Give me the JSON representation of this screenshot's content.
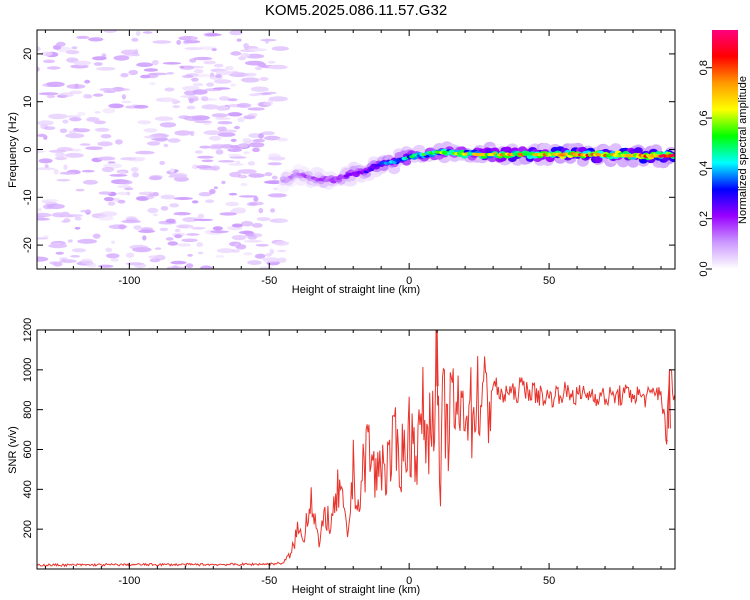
{
  "title": "KOM5.2025.086.11.57.G32",
  "chart_data": [
    {
      "type": "heatmap",
      "title": "KOM5.2025.086.11.57.G32",
      "xlabel": "Height of straight line (km)",
      "ylabel": "Frequency (Hz)",
      "xlim": [
        -133,
        95
      ],
      "ylim": [
        -25,
        25
      ],
      "x_ticks": [
        -100,
        -50,
        0,
        50
      ],
      "y_ticks": [
        20,
        10,
        0,
        -10,
        -20
      ],
      "y_tick_labels": [
        "20",
        "10",
        "0",
        "-10",
        "-20"
      ],
      "colorbar": {
        "label": "Normalized spectral amplitude",
        "range": [
          0,
          0.95
        ],
        "ticks": [
          0,
          0.2,
          0.4,
          0.6,
          0.8
        ],
        "tick_labels": [
          "0.0",
          "0.2",
          "0.4",
          "0.6",
          "0.8"
        ],
        "colormap": [
          "#ffffff",
          "#cc99ff",
          "#9900ff",
          "#0000ff",
          "#00ffff",
          "#00ff00",
          "#ffff00",
          "#ff9900",
          "#ff0000",
          "#ff0080"
        ]
      },
      "ridge": {
        "x": [
          -45,
          -40,
          -35,
          -30,
          -25,
          -20,
          -15,
          -10,
          -5,
          0,
          5,
          10,
          15,
          20,
          30,
          40,
          50,
          60,
          70,
          80,
          90,
          95
        ],
        "frequency": [
          -6.5,
          -5,
          -6,
          -6.5,
          -6,
          -5,
          -4.5,
          -3,
          -2.5,
          -1.5,
          -1,
          -0.5,
          -0.8,
          -1,
          -1,
          -1,
          -1,
          -1,
          -1.2,
          -1.2,
          -1.3,
          -1.3
        ],
        "amplitude": [
          0.1,
          0.12,
          0.15,
          0.18,
          0.2,
          0.22,
          0.25,
          0.3,
          0.35,
          0.4,
          0.45,
          0.5,
          0.5,
          0.55,
          0.6,
          0.65,
          0.65,
          0.7,
          0.7,
          0.7,
          0.75,
          0.75
        ]
      },
      "noise_region": {
        "x_range": [
          -133,
          -45
        ],
        "amplitude": 0.05
      }
    },
    {
      "type": "line",
      "xlabel": "Height of straight line (km)",
      "ylabel": "SNR (v/v)",
      "xlim": [
        -133,
        95
      ],
      "ylim": [
        0,
        1200
      ],
      "x_ticks": [
        -100,
        -50,
        0,
        50
      ],
      "y_ticks": [
        200,
        400,
        600,
        800,
        1000,
        1200
      ],
      "color": "#e8342c",
      "series": [
        {
          "x": [
            -133,
            -120,
            -100,
            -80,
            -60,
            -50,
            -45,
            -42,
            -40,
            -38,
            -35,
            -32,
            -30,
            -28,
            -25,
            -22,
            -20,
            -18,
            -15,
            -12,
            -10,
            -8,
            -5,
            -3,
            0,
            3,
            5,
            7,
            9,
            10,
            11,
            12,
            14,
            16,
            18,
            20,
            22,
            25,
            28,
            30,
            33,
            35,
            38,
            40,
            45,
            50,
            55,
            60,
            65,
            70,
            75,
            80,
            85,
            90,
            92,
            93,
            95
          ],
          "y": [
            20,
            20,
            22,
            22,
            23,
            25,
            30,
            80,
            200,
            150,
            380,
            100,
            300,
            200,
            420,
            150,
            500,
            300,
            650,
            450,
            550,
            500,
            620,
            550,
            680,
            600,
            780,
            650,
            900,
            1200,
            250,
            800,
            700,
            850,
            720,
            900,
            780,
            880,
            820,
            950,
            850,
            900,
            870,
            920,
            880,
            860,
            890,
            870,
            880,
            860,
            870,
            880,
            860,
            900,
            640,
            1000,
            870
          ]
        }
      ]
    }
  ]
}
